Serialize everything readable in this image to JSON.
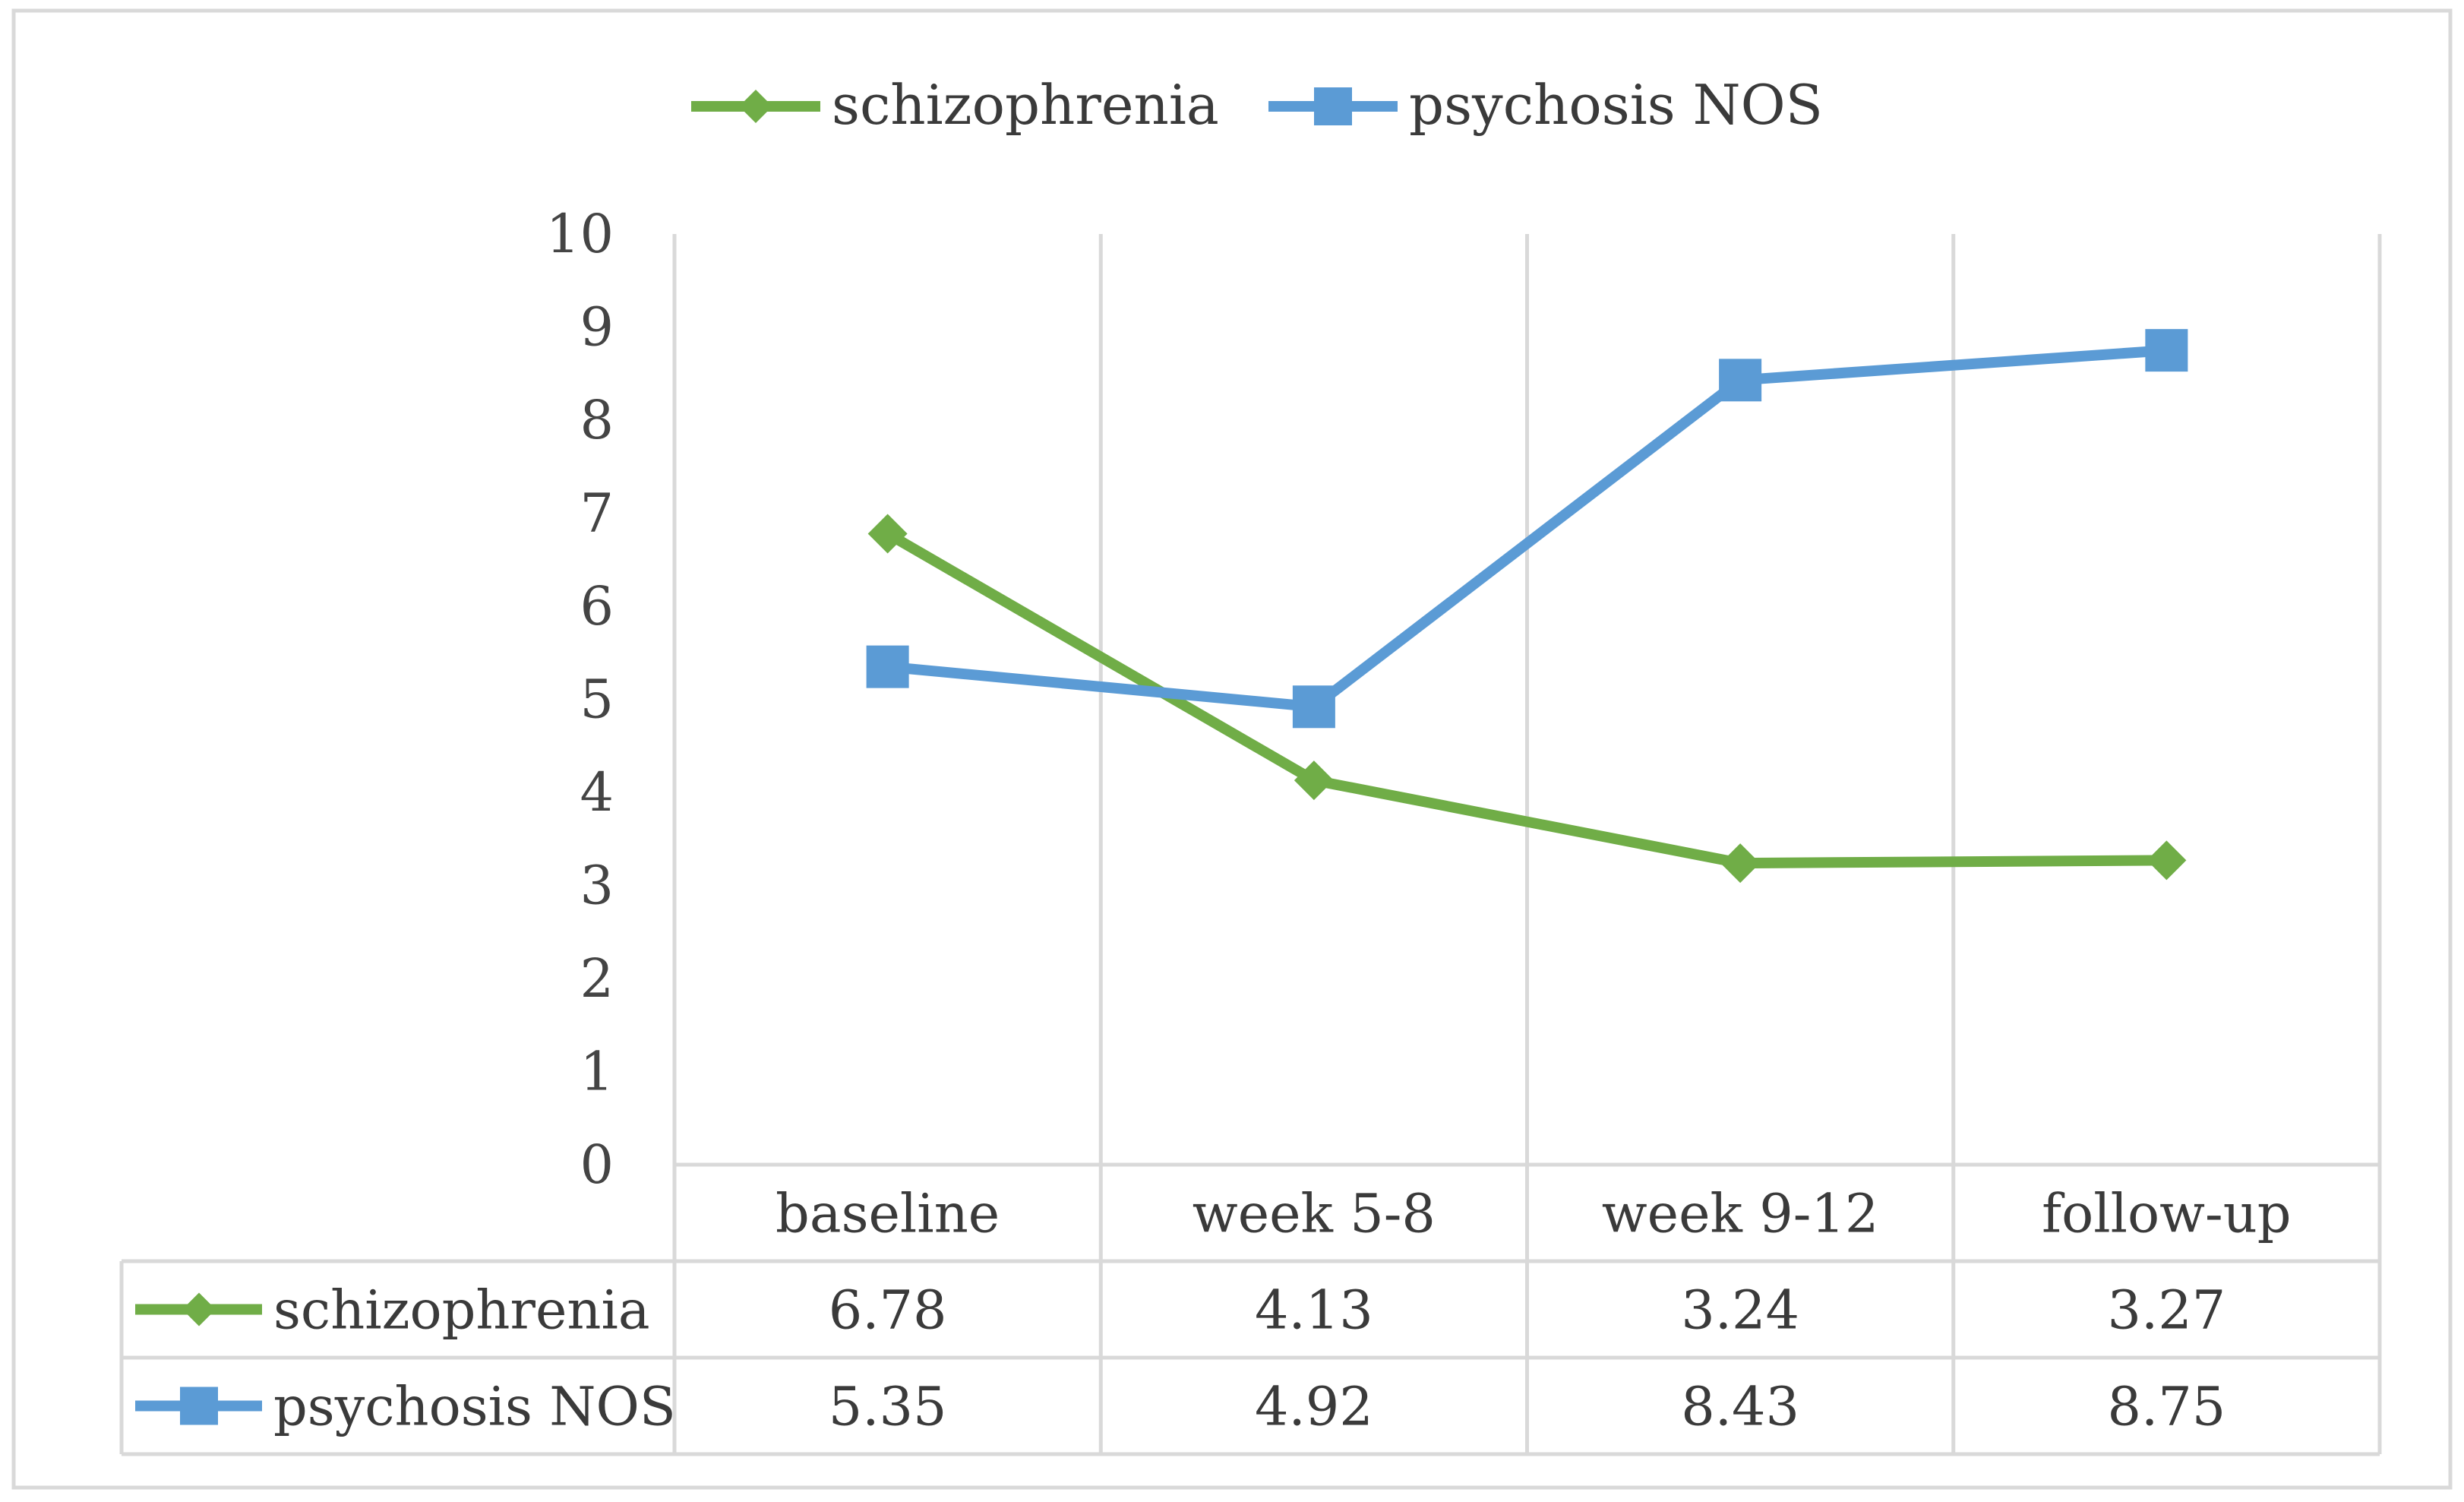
{
  "chart_data": {
    "type": "line",
    "title": "",
    "xlabel": "",
    "ylabel": "",
    "ylim": [
      0,
      10
    ],
    "yticks": [
      "0",
      "1",
      "2",
      "3",
      "4",
      "5",
      "6",
      "7",
      "8",
      "9",
      "10"
    ],
    "categories": [
      "baseline",
      "week 5-8",
      "week 9-12",
      "follow-up"
    ],
    "grid": "vertical",
    "legend_position": "top",
    "data_table": true,
    "series": [
      {
        "name": "schizophrenia",
        "color": "#70AD47",
        "marker": "diamond",
        "values": [
          6.78,
          4.13,
          3.24,
          3.27
        ],
        "labels": [
          "6.78",
          "4.13",
          "3.24",
          "3.27"
        ]
      },
      {
        "name": "psychosis NOS",
        "color": "#5B9BD5",
        "marker": "square",
        "values": [
          5.35,
          4.92,
          8.43,
          8.75
        ],
        "labels": [
          "5.35",
          "4.92",
          "8.43",
          "8.75"
        ]
      }
    ]
  }
}
